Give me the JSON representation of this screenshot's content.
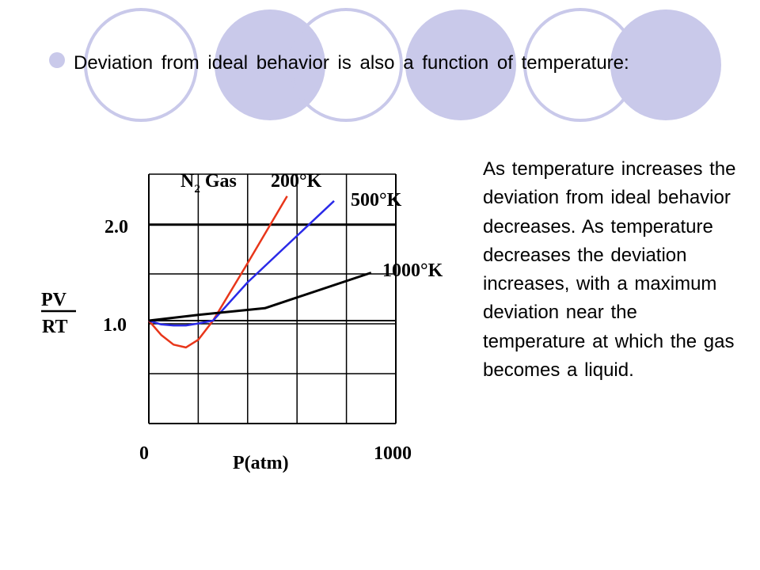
{
  "slide": {
    "bullet": "Deviation from ideal behavior is also a function of temperature:",
    "side_text": "As temperature increases the deviation from ideal behavior decreases. As temperature decreases the deviation increases, with a maximum deviation near the temperature at which the gas becomes a liquid."
  },
  "colors": {
    "decor_circle": "#c9c9ea",
    "red_series": "#e8361a",
    "blue_series": "#2a2ae8",
    "black_series": "#000000"
  },
  "chart_data": {
    "type": "line",
    "title_prefix": "N",
    "title_sub": "2",
    "title_suffix": "Gas",
    "xlabel": "P(atm)",
    "ylabel_num": "PV",
    "ylabel_den": "RT",
    "xlim": [
      0,
      1000
    ],
    "ylim": [
      0,
      2.5
    ],
    "x_tick_labels": [
      {
        "value": 0,
        "label": "0"
      },
      {
        "value": 1000,
        "label": "1000"
      }
    ],
    "y_tick_labels": [
      {
        "value": 1.0,
        "label": "1.0"
      },
      {
        "value": 2.0,
        "label": "2.0"
      }
    ],
    "grid": true,
    "series": [
      {
        "name": "200°K",
        "color": "#e8361a",
        "points": [
          [
            0,
            1.0
          ],
          [
            50,
            0.85
          ],
          [
            100,
            0.75
          ],
          [
            150,
            0.72
          ],
          [
            200,
            0.8
          ],
          [
            260,
            1.0
          ],
          [
            400,
            1.6
          ],
          [
            560,
            2.3
          ]
        ]
      },
      {
        "name": "500°K",
        "color": "#2a2ae8",
        "points": [
          [
            0,
            1.0
          ],
          [
            50,
            0.96
          ],
          [
            100,
            0.95
          ],
          [
            150,
            0.95
          ],
          [
            200,
            0.97
          ],
          [
            260,
            1.0
          ],
          [
            400,
            1.4
          ],
          [
            750,
            2.25
          ]
        ]
      },
      {
        "name": "1000°K",
        "color": "#000000",
        "points": [
          [
            0,
            1.0
          ],
          [
            200,
            1.06
          ],
          [
            470,
            1.13
          ],
          [
            900,
            1.5
          ]
        ]
      }
    ]
  }
}
